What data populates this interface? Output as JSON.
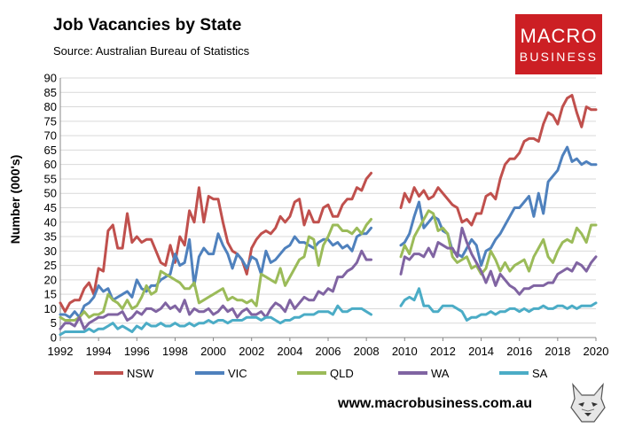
{
  "header": {
    "title": "Job Vacancies by State",
    "subtitle": "Source: Australian Bureau of Statistics"
  },
  "brand": {
    "line1": "MACRO",
    "line2": "BUSINESS",
    "color": "#cc1f24"
  },
  "footer": {
    "url": "www.macrobusiness.com.au"
  },
  "chart_data": {
    "type": "line",
    "title": "Job Vacancies by State",
    "xlabel": "",
    "ylabel": "Number (000's)",
    "xlim": [
      1992,
      2020
    ],
    "ylim": [
      0,
      90
    ],
    "yticks": [
      0,
      5,
      10,
      15,
      20,
      25,
      30,
      35,
      40,
      45,
      50,
      55,
      60,
      65,
      70,
      75,
      80,
      85,
      90
    ],
    "xticks": [
      1992,
      1994,
      1996,
      1998,
      2000,
      2002,
      2004,
      2006,
      2008,
      2010,
      2012,
      2014,
      2016,
      2018,
      2020
    ],
    "grid": "horizontal",
    "legend_position": "bottom",
    "note": "Series break between 2008.4 and 2009.8",
    "series": [
      {
        "name": "NSW",
        "color": "#c0504d",
        "x": [
          1992.0,
          1992.25,
          1992.5,
          1992.75,
          1993.0,
          1993.25,
          1993.5,
          1993.75,
          1994.0,
          1994.25,
          1994.5,
          1994.75,
          1995.0,
          1995.25,
          1995.5,
          1995.75,
          1996.0,
          1996.25,
          1996.5,
          1996.75,
          1997.0,
          1997.25,
          1997.5,
          1997.75,
          1998.0,
          1998.25,
          1998.5,
          1998.75,
          1999.0,
          1999.25,
          1999.5,
          1999.75,
          2000.0,
          2000.25,
          2000.5,
          2000.75,
          2001.0,
          2001.25,
          2001.5,
          2001.75,
          2002.0,
          2002.25,
          2002.5,
          2002.75,
          2003.0,
          2003.25,
          2003.5,
          2003.75,
          2004.0,
          2004.25,
          2004.5,
          2004.75,
          2005.0,
          2005.25,
          2005.5,
          2005.75,
          2006.0,
          2006.25,
          2006.5,
          2006.75,
          2007.0,
          2007.25,
          2007.5,
          2007.75,
          2008.0,
          2008.25,
          null,
          2009.8,
          2010.0,
          2010.25,
          2010.5,
          2010.75,
          2011.0,
          2011.25,
          2011.5,
          2011.75,
          2012.0,
          2012.25,
          2012.5,
          2012.75,
          2013.0,
          2013.25,
          2013.5,
          2013.75,
          2014.0,
          2014.25,
          2014.5,
          2014.75,
          2015.0,
          2015.25,
          2015.5,
          2015.75,
          2016.0,
          2016.25,
          2016.5,
          2016.75,
          2017.0,
          2017.25,
          2017.5,
          2017.75,
          2018.0,
          2018.25,
          2018.5,
          2018.75,
          2019.0,
          2019.25,
          2019.5,
          2019.75,
          2020.0
        ],
        "values": [
          12,
          9,
          12,
          13,
          13,
          17,
          19,
          15,
          24,
          23,
          37,
          39,
          31,
          31,
          43,
          33,
          35,
          33,
          34,
          34,
          30,
          26,
          25,
          32,
          26,
          35,
          32,
          44,
          40,
          52,
          40,
          49,
          48,
          48,
          40,
          33,
          30,
          29,
          27,
          22,
          31,
          34,
          36,
          37,
          36,
          38,
          42,
          40,
          42,
          47,
          48,
          39,
          44,
          40,
          40,
          45,
          46,
          42,
          42,
          46,
          48,
          48,
          52,
          51,
          55,
          57,
          null,
          45,
          50,
          47,
          52,
          49,
          51,
          48,
          49,
          52,
          50,
          48,
          46,
          45,
          40,
          41,
          39,
          43,
          43,
          49,
          50,
          48,
          55,
          60,
          62,
          62,
          64,
          68,
          69,
          69,
          68,
          74,
          78,
          77,
          74,
          80,
          83,
          84,
          78,
          73,
          80,
          79,
          79
        ]
      },
      {
        "name": "VIC",
        "color": "#4f81bd",
        "x": [
          1992.0,
          1992.25,
          1992.5,
          1992.75,
          1993.0,
          1993.25,
          1993.5,
          1993.75,
          1994.0,
          1994.25,
          1994.5,
          1994.75,
          1995.0,
          1995.25,
          1995.5,
          1995.75,
          1996.0,
          1996.25,
          1996.5,
          1996.75,
          1997.0,
          1997.25,
          1997.5,
          1997.75,
          1998.0,
          1998.25,
          1998.5,
          1998.75,
          1999.0,
          1999.25,
          1999.5,
          1999.75,
          2000.0,
          2000.25,
          2000.5,
          2000.75,
          2001.0,
          2001.25,
          2001.5,
          2001.75,
          2002.0,
          2002.25,
          2002.5,
          2002.75,
          2003.0,
          2003.25,
          2003.5,
          2003.75,
          2004.0,
          2004.25,
          2004.5,
          2004.75,
          2005.0,
          2005.25,
          2005.5,
          2005.75,
          2006.0,
          2006.25,
          2006.5,
          2006.75,
          2007.0,
          2007.25,
          2007.5,
          2007.75,
          2008.0,
          2008.25,
          null,
          2009.8,
          2010.0,
          2010.25,
          2010.5,
          2010.75,
          2011.0,
          2011.25,
          2011.5,
          2011.75,
          2012.0,
          2012.25,
          2012.5,
          2012.75,
          2013.0,
          2013.25,
          2013.5,
          2013.75,
          2014.0,
          2014.25,
          2014.5,
          2014.75,
          2015.0,
          2015.25,
          2015.5,
          2015.75,
          2016.0,
          2016.25,
          2016.5,
          2016.75,
          2017.0,
          2017.25,
          2017.5,
          2017.75,
          2018.0,
          2018.25,
          2018.5,
          2018.75,
          2019.0,
          2019.25,
          2019.5,
          2019.75,
          2020.0
        ],
        "values": [
          8,
          8,
          7,
          9,
          7,
          11,
          12,
          14,
          18,
          16,
          17,
          13,
          14,
          15,
          16,
          14,
          20,
          17,
          16,
          18,
          18,
          20,
          21,
          22,
          29,
          25,
          26,
          34,
          18,
          28,
          31,
          29,
          29,
          36,
          32,
          29,
          24,
          29,
          27,
          24,
          28,
          27,
          22,
          30,
          26,
          27,
          29,
          31,
          32,
          35,
          33,
          33,
          32,
          31,
          33,
          34,
          34,
          32,
          33,
          31,
          32,
          30,
          35,
          36,
          36,
          38,
          null,
          32,
          33,
          36,
          42,
          47,
          38,
          40,
          42,
          41,
          37,
          36,
          30,
          29,
          28,
          31,
          34,
          32,
          25,
          30,
          31,
          34,
          36,
          39,
          42,
          45,
          45,
          47,
          49,
          42,
          50,
          43,
          54,
          56,
          58,
          63,
          66,
          61,
          62,
          60,
          61,
          60,
          60
        ]
      },
      {
        "name": "QLD",
        "color": "#9bbb59",
        "x": [
          1992.0,
          1992.25,
          1992.5,
          1992.75,
          1993.0,
          1993.25,
          1993.5,
          1993.75,
          1994.0,
          1994.25,
          1994.5,
          1994.75,
          1995.0,
          1995.25,
          1995.5,
          1995.75,
          1996.0,
          1996.25,
          1996.5,
          1996.75,
          1997.0,
          1997.25,
          1997.5,
          1997.75,
          1998.0,
          1998.25,
          1998.5,
          1998.75,
          1999.0,
          1999.25,
          1999.5,
          1999.75,
          2000.0,
          2000.25,
          2000.5,
          2000.75,
          2001.0,
          2001.25,
          2001.5,
          2001.75,
          2002.0,
          2002.25,
          2002.5,
          2002.75,
          2003.0,
          2003.25,
          2003.5,
          2003.75,
          2004.0,
          2004.25,
          2004.5,
          2004.75,
          2005.0,
          2005.25,
          2005.5,
          2005.75,
          2006.0,
          2006.25,
          2006.5,
          2006.75,
          2007.0,
          2007.25,
          2007.5,
          2007.75,
          2008.0,
          2008.25,
          null,
          2009.8,
          2010.0,
          2010.25,
          2010.5,
          2010.75,
          2011.0,
          2011.25,
          2011.5,
          2011.75,
          2012.0,
          2012.25,
          2012.5,
          2012.75,
          2013.0,
          2013.25,
          2013.5,
          2013.75,
          2014.0,
          2014.25,
          2014.5,
          2014.75,
          2015.0,
          2015.25,
          2015.5,
          2015.75,
          2016.0,
          2016.25,
          2016.5,
          2016.75,
          2017.0,
          2017.25,
          2017.5,
          2017.75,
          2018.0,
          2018.25,
          2018.5,
          2018.75,
          2019.0,
          2019.25,
          2019.5,
          2019.75,
          2020.0
        ],
        "values": [
          7,
          6,
          6,
          6,
          7,
          9,
          7,
          8,
          8,
          9,
          15,
          13,
          12,
          10,
          13,
          10,
          11,
          14,
          18,
          15,
          16,
          23,
          22,
          21,
          20,
          19,
          17,
          17,
          19,
          12,
          13,
          14,
          15,
          16,
          17,
          13,
          14,
          13,
          13,
          12,
          13,
          11,
          22,
          21,
          20,
          19,
          24,
          18,
          21,
          24,
          27,
          28,
          35,
          34,
          25,
          32,
          35,
          39,
          39,
          37,
          37,
          36,
          38,
          36,
          39,
          41,
          null,
          28,
          32,
          29,
          35,
          38,
          41,
          44,
          43,
          37,
          38,
          36,
          28,
          26,
          27,
          28,
          24,
          25,
          22,
          24,
          30,
          27,
          23,
          26,
          23,
          25,
          26,
          27,
          23,
          28,
          31,
          34,
          28,
          26,
          30,
          33,
          34,
          33,
          38,
          36,
          33,
          39,
          39
        ]
      },
      {
        "name": "WA",
        "color": "#8064a2",
        "x": [
          1992.0,
          1992.25,
          1992.5,
          1992.75,
          1993.0,
          1993.25,
          1993.5,
          1993.75,
          1994.0,
          1994.25,
          1994.5,
          1994.75,
          1995.0,
          1995.25,
          1995.5,
          1995.75,
          1996.0,
          1996.25,
          1996.5,
          1996.75,
          1997.0,
          1997.25,
          1997.5,
          1997.75,
          1998.0,
          1998.25,
          1998.5,
          1998.75,
          1999.0,
          1999.25,
          1999.5,
          1999.75,
          2000.0,
          2000.25,
          2000.5,
          2000.75,
          2001.0,
          2001.25,
          2001.5,
          2001.75,
          2002.0,
          2002.25,
          2002.5,
          2002.75,
          2003.0,
          2003.25,
          2003.5,
          2003.75,
          2004.0,
          2004.25,
          2004.5,
          2004.75,
          2005.0,
          2005.25,
          2005.5,
          2005.75,
          2006.0,
          2006.25,
          2006.5,
          2006.75,
          2007.0,
          2007.25,
          2007.5,
          2007.75,
          2008.0,
          2008.25,
          null,
          2009.8,
          2010.0,
          2010.25,
          2010.5,
          2010.75,
          2011.0,
          2011.25,
          2011.5,
          2011.75,
          2012.0,
          2012.25,
          2012.5,
          2012.75,
          2013.0,
          2013.25,
          2013.5,
          2013.75,
          2014.0,
          2014.25,
          2014.5,
          2014.75,
          2015.0,
          2015.25,
          2015.5,
          2015.75,
          2016.0,
          2016.25,
          2016.5,
          2016.75,
          2017.0,
          2017.25,
          2017.5,
          2017.75,
          2018.0,
          2018.25,
          2018.5,
          2018.75,
          2019.0,
          2019.25,
          2019.5,
          2019.75,
          2020.0
        ],
        "values": [
          3,
          5,
          5,
          4,
          7,
          3,
          5,
          6,
          7,
          7,
          8,
          8,
          8,
          9,
          6,
          7,
          9,
          8,
          10,
          10,
          9,
          10,
          12,
          10,
          11,
          9,
          13,
          8,
          10,
          9,
          9,
          10,
          8,
          9,
          11,
          9,
          10,
          7,
          9,
          10,
          8,
          8,
          9,
          7,
          10,
          12,
          11,
          9,
          13,
          10,
          12,
          14,
          13,
          13,
          16,
          15,
          17,
          16,
          21,
          21,
          23,
          24,
          26,
          30,
          27,
          27,
          null,
          22,
          28,
          27,
          29,
          29,
          28,
          31,
          28,
          33,
          32,
          31,
          31,
          28,
          38,
          33,
          29,
          26,
          23,
          19,
          23,
          18,
          22,
          20,
          18,
          17,
          15,
          17,
          17,
          18,
          18,
          18,
          19,
          19,
          22,
          23,
          24,
          23,
          26,
          25,
          23,
          26,
          28
        ]
      },
      {
        "name": "SA",
        "color": "#4bacc6",
        "x": [
          1992.0,
          1992.25,
          1992.5,
          1992.75,
          1993.0,
          1993.25,
          1993.5,
          1993.75,
          1994.0,
          1994.25,
          1994.5,
          1994.75,
          1995.0,
          1995.25,
          1995.5,
          1995.75,
          1996.0,
          1996.25,
          1996.5,
          1996.75,
          1997.0,
          1997.25,
          1997.5,
          1997.75,
          1998.0,
          1998.25,
          1998.5,
          1998.75,
          1999.0,
          1999.25,
          1999.5,
          1999.75,
          2000.0,
          2000.25,
          2000.5,
          2000.75,
          2001.0,
          2001.25,
          2001.5,
          2001.75,
          2002.0,
          2002.25,
          2002.5,
          2002.75,
          2003.0,
          2003.25,
          2003.5,
          2003.75,
          2004.0,
          2004.25,
          2004.5,
          2004.75,
          2005.0,
          2005.25,
          2005.5,
          2005.75,
          2006.0,
          2006.25,
          2006.5,
          2006.75,
          2007.0,
          2007.25,
          2007.5,
          2007.75,
          2008.0,
          2008.25,
          null,
          2009.8,
          2010.0,
          2010.25,
          2010.5,
          2010.75,
          2011.0,
          2011.25,
          2011.5,
          2011.75,
          2012.0,
          2012.25,
          2012.5,
          2012.75,
          2013.0,
          2013.25,
          2013.5,
          2013.75,
          2014.0,
          2014.25,
          2014.5,
          2014.75,
          2015.0,
          2015.25,
          2015.5,
          2015.75,
          2016.0,
          2016.25,
          2016.5,
          2016.75,
          2017.0,
          2017.25,
          2017.5,
          2017.75,
          2018.0,
          2018.25,
          2018.5,
          2018.75,
          2019.0,
          2019.25,
          2019.5,
          2019.75,
          2020.0
        ],
        "values": [
          1,
          2,
          2,
          2,
          2,
          2,
          3,
          2,
          3,
          3,
          4,
          5,
          3,
          4,
          3,
          2,
          4,
          3,
          5,
          4,
          4,
          5,
          4,
          4,
          5,
          4,
          4,
          5,
          4,
          5,
          5,
          6,
          5,
          6,
          6,
          5,
          6,
          6,
          6,
          7,
          7,
          7,
          6,
          7,
          7,
          6,
          5,
          6,
          6,
          7,
          7,
          8,
          8,
          8,
          9,
          9,
          9,
          8,
          11,
          9,
          9,
          10,
          10,
          10,
          9,
          8,
          null,
          11,
          13,
          14,
          13,
          17,
          11,
          11,
          9,
          9,
          11,
          11,
          11,
          10,
          9,
          6,
          7,
          7,
          8,
          8,
          9,
          8,
          9,
          9,
          10,
          10,
          9,
          10,
          9,
          10,
          10,
          11,
          10,
          10,
          11,
          11,
          10,
          11,
          10,
          11,
          11,
          11,
          12
        ]
      }
    ]
  }
}
